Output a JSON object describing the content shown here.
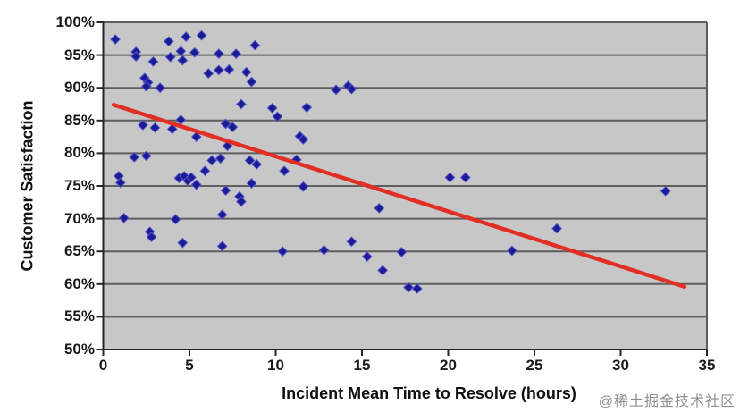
{
  "watermark": {
    "text": "@稀土掘金技术社区",
    "color": "#8f8f8f"
  },
  "chart_data": {
    "type": "scatter",
    "title": "",
    "xlabel": "Incident Mean Time to Resolve (hours)",
    "ylabel": "Customer Satisfaction",
    "xlim": [
      0,
      35
    ],
    "ylim": [
      50,
      100
    ],
    "x_ticks": [
      0,
      5,
      10,
      15,
      20,
      25,
      30,
      35
    ],
    "y_tick_values": [
      50,
      55,
      60,
      65,
      70,
      75,
      80,
      85,
      90,
      95,
      100
    ],
    "y_tick_labels": [
      "50%",
      "55%",
      "60%",
      "65%",
      "70%",
      "75%",
      "80%",
      "85%",
      "90%",
      "95%",
      "100%"
    ],
    "grid": "horizontal",
    "legend": "none",
    "colors": {
      "plot_bg": "#c7c7c7",
      "gridline": "#5e5e5e",
      "axis": "#262626",
      "marker_fill": "#1b1b94",
      "marker_edge": "#5555cc",
      "trend": "#e22f26",
      "text": "#1a1a1a"
    },
    "series": [
      {
        "name": "incidents",
        "type": "scatter",
        "marker": "diamond",
        "points": [
          [
            0.7,
            97.4
          ],
          [
            1.9,
            95.5
          ],
          [
            1.9,
            94.8
          ],
          [
            2.9,
            94.0
          ],
          [
            3.8,
            97.1
          ],
          [
            3.9,
            94.7
          ],
          [
            4.5,
            95.6
          ],
          [
            4.6,
            94.2
          ],
          [
            4.8,
            97.8
          ],
          [
            5.3,
            95.4
          ],
          [
            5.7,
            98.0
          ],
          [
            6.7,
            95.2
          ],
          [
            7.7,
            95.2
          ],
          [
            8.8,
            96.5
          ],
          [
            2.4,
            91.5
          ],
          [
            2.6,
            90.8
          ],
          [
            2.5,
            90.2
          ],
          [
            3.3,
            90.0
          ],
          [
            6.1,
            92.2
          ],
          [
            6.7,
            92.7
          ],
          [
            7.3,
            92.8
          ],
          [
            8.3,
            92.4
          ],
          [
            8.6,
            90.9
          ],
          [
            13.5,
            89.7
          ],
          [
            14.2,
            90.3
          ],
          [
            14.4,
            89.8
          ],
          [
            2.3,
            84.3
          ],
          [
            3.0,
            83.9
          ],
          [
            4.0,
            83.7
          ],
          [
            4.5,
            85.1
          ],
          [
            5.4,
            82.5
          ],
          [
            7.1,
            84.5
          ],
          [
            7.5,
            84.0
          ],
          [
            8.0,
            87.5
          ],
          [
            9.8,
            86.9
          ],
          [
            10.1,
            85.6
          ],
          [
            11.8,
            87.0
          ],
          [
            11.4,
            82.6
          ],
          [
            11.6,
            82.1
          ],
          [
            1.8,
            79.4
          ],
          [
            2.5,
            79.6
          ],
          [
            6.3,
            78.9
          ],
          [
            6.8,
            79.2
          ],
          [
            7.2,
            81.1
          ],
          [
            8.5,
            78.9
          ],
          [
            8.9,
            78.3
          ],
          [
            11.2,
            79.0
          ],
          [
            0.9,
            76.5
          ],
          [
            1.0,
            75.5
          ],
          [
            4.4,
            76.2
          ],
          [
            4.7,
            76.5
          ],
          [
            4.9,
            75.8
          ],
          [
            5.1,
            76.3
          ],
          [
            5.4,
            75.2
          ],
          [
            5.9,
            77.3
          ],
          [
            7.1,
            74.3
          ],
          [
            8.6,
            75.4
          ],
          [
            10.5,
            77.3
          ],
          [
            11.6,
            74.9
          ],
          [
            20.1,
            76.3
          ],
          [
            21.0,
            76.3
          ],
          [
            32.6,
            74.2
          ],
          [
            1.2,
            70.1
          ],
          [
            4.2,
            69.9
          ],
          [
            6.9,
            70.6
          ],
          [
            7.9,
            73.4
          ],
          [
            8.0,
            72.6
          ],
          [
            16.0,
            71.6
          ],
          [
            2.7,
            68.0
          ],
          [
            2.8,
            67.2
          ],
          [
            4.6,
            66.3
          ],
          [
            6.9,
            65.8
          ],
          [
            10.4,
            65.0
          ],
          [
            12.8,
            65.2
          ],
          [
            14.4,
            66.5
          ],
          [
            23.7,
            65.1
          ],
          [
            26.3,
            68.5
          ],
          [
            15.3,
            64.2
          ],
          [
            16.2,
            62.1
          ],
          [
            17.3,
            64.9
          ],
          [
            17.7,
            59.5
          ],
          [
            18.2,
            59.3
          ]
        ]
      },
      {
        "name": "trend",
        "type": "line",
        "points": [
          [
            0.6,
            87.4
          ],
          [
            33.7,
            59.6
          ]
        ]
      }
    ]
  }
}
